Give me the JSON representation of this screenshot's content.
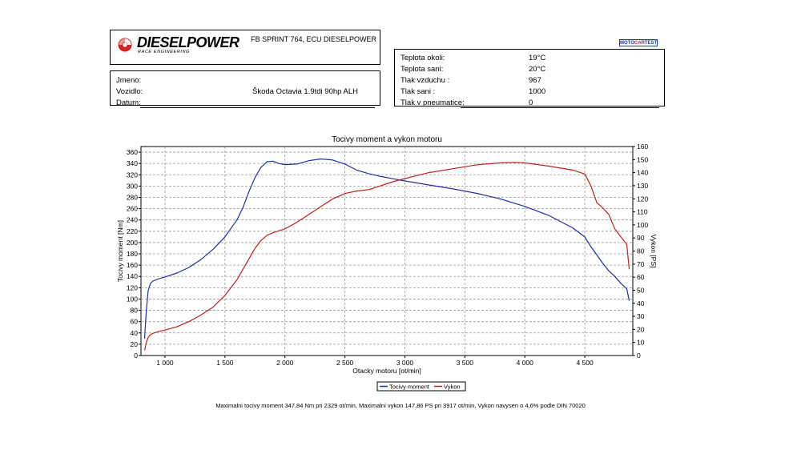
{
  "header": {
    "brand": "DIESELPOWER",
    "brand_sub": "RACE ENGINEERING",
    "dyno_title": "FB SPRINT 764, ECU DIESELPOWER",
    "badge": [
      "MOTO",
      "CAR",
      "TEST"
    ]
  },
  "vehicle_info": {
    "name_label": "Jmeno:",
    "name_value": "",
    "vehicle_label": "Vozidlo:",
    "vehicle_value": "Škoda Octavia 1.9tdi 90hp ALH",
    "date_label": "Datum:",
    "date_value": ""
  },
  "conditions": [
    {
      "label": "Teplota okoli:",
      "value": "19°C"
    },
    {
      "label": "Teplota sani:",
      "value": "20°C"
    },
    {
      "label": "Tlak vzduchu :",
      "value": "967"
    },
    {
      "label": "Tlak sani :",
      "value": "1000"
    },
    {
      "label": "Tlak v pneumatice:",
      "value": "0"
    }
  ],
  "footer": {
    "text": "Maximalni tocivy moment 347,84 Nm pri 2329 ot/min,  Maximalni vykon 147,86 PS pri 3917 ot/min,  Vykon navysen o 4,6% podle DIN 70020"
  },
  "chart_data": {
    "type": "line",
    "title": "Tocivy moment a vykon motoru",
    "xlabel": "Otacky motoru [ot/min]",
    "ylabel": "Tocivy moment [Nm]",
    "y2label": "Vykon [PS]",
    "xlim": [
      800,
      4900
    ],
    "ylim": [
      0,
      370
    ],
    "y2lim": [
      0,
      160
    ],
    "x_ticks": [
      1000,
      1500,
      2000,
      2500,
      3000,
      3500,
      4000,
      4500
    ],
    "x_tick_labels": [
      "1 000",
      "1 500",
      "2 000",
      "2 500",
      "3 000",
      "3 500",
      "4 000",
      "4 500"
    ],
    "y_ticks": [
      0,
      20,
      40,
      60,
      80,
      100,
      120,
      140,
      160,
      180,
      200,
      220,
      240,
      260,
      280,
      300,
      320,
      340,
      360
    ],
    "y2_ticks": [
      0,
      10,
      20,
      30,
      40,
      50,
      60,
      70,
      80,
      90,
      100,
      110,
      120,
      130,
      140,
      150,
      160
    ],
    "grid": true,
    "legend_position": "bottom-center",
    "series": [
      {
        "name": "Tocivy moment",
        "axis": "left",
        "color": "#1f2faa",
        "x": [
          830,
          845,
          860,
          880,
          900,
          950,
          1000,
          1100,
          1200,
          1300,
          1400,
          1500,
          1600,
          1650,
          1700,
          1750,
          1800,
          1850,
          1900,
          1950,
          2000,
          2100,
          2200,
          2300,
          2400,
          2500,
          2600,
          2700,
          2800,
          2900,
          3000,
          3200,
          3400,
          3600,
          3800,
          4000,
          4200,
          4400,
          4500,
          4550,
          4600,
          4650,
          4700,
          4750,
          4800,
          4850,
          4870
        ],
        "y": [
          30,
          80,
          115,
          128,
          132,
          136,
          139,
          146,
          156,
          170,
          188,
          210,
          240,
          262,
          290,
          315,
          333,
          343,
          344,
          340,
          338,
          339,
          345,
          348,
          346,
          339,
          328,
          322,
          317,
          313,
          309,
          302,
          295,
          287,
          277,
          264,
          248,
          226,
          210,
          193,
          178,
          163,
          150,
          140,
          128,
          118,
          97
        ]
      },
      {
        "name": "Vykon",
        "axis": "right",
        "color": "#c0201a",
        "x": [
          830,
          845,
          860,
          880,
          900,
          950,
          1000,
          1100,
          1200,
          1300,
          1400,
          1500,
          1600,
          1700,
          1750,
          1800,
          1850,
          1900,
          2000,
          2100,
          2200,
          2300,
          2400,
          2500,
          2600,
          2700,
          2800,
          2900,
          3000,
          3200,
          3400,
          3600,
          3800,
          3917,
          4000,
          4200,
          4400,
          4500,
          4550,
          4600,
          4650,
          4700,
          4750,
          4800,
          4850,
          4870
        ],
        "y": [
          4,
          10,
          14,
          16,
          17,
          18.5,
          19.5,
          22,
          26,
          31,
          37,
          46,
          58,
          74,
          82,
          88,
          92,
          94,
          97,
          102,
          108,
          114,
          120,
          124,
          126,
          127,
          130,
          133,
          135.5,
          140,
          143,
          146,
          147.5,
          147.86,
          147.5,
          145,
          142,
          139,
          130,
          117,
          113,
          108,
          97,
          91,
          85,
          66
        ]
      }
    ]
  }
}
